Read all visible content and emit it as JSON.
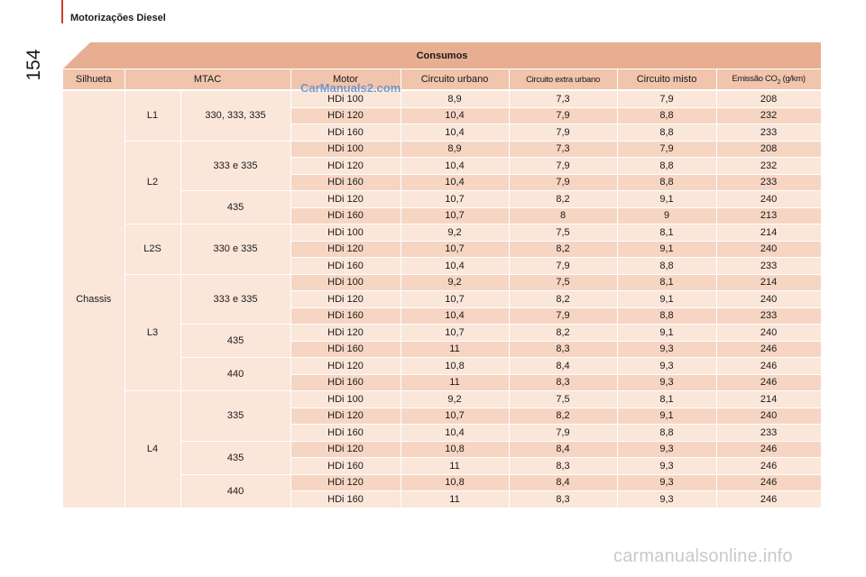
{
  "section_title": "Motorizações Diesel",
  "page_number": "154",
  "table_title": "Consumos",
  "headers": [
    "Silhueta",
    "MTAC",
    "Motor",
    "Circuito urbano",
    "Circuito extra urbano",
    "Circuito misto",
    "Emissão CO",
    "2",
    " (g/km)"
  ],
  "silhueta": "Chassis",
  "groups": [
    {
      "model": "L1",
      "rows": 3,
      "mtac": [
        {
          "label": "330, 333, 335",
          "rows": 3
        }
      ]
    },
    {
      "model": "L2",
      "rows": 5,
      "mtac": [
        {
          "label": "333 e 335",
          "rows": 3
        },
        {
          "label": "435",
          "rows": 2
        }
      ]
    },
    {
      "model": "L2S",
      "rows": 3,
      "mtac": [
        {
          "label": "330 e 335",
          "rows": 3
        }
      ]
    },
    {
      "model": "L3",
      "rows": 7,
      "mtac": [
        {
          "label": "333 e 335",
          "rows": 3
        },
        {
          "label": "435",
          "rows": 2
        },
        {
          "label": "440",
          "rows": 2
        }
      ]
    },
    {
      "model": "L4",
      "rows": 7,
      "mtac": [
        {
          "label": "335",
          "rows": 3
        },
        {
          "label": "435",
          "rows": 2
        },
        {
          "label": "440",
          "rows": 2
        }
      ]
    }
  ],
  "rows": [
    [
      "HDi 100",
      "8,9",
      "7,3",
      "7,9",
      "208"
    ],
    [
      "HDi 120",
      "10,4",
      "7,9",
      "8,8",
      "232"
    ],
    [
      "HDi 160",
      "10,4",
      "7,9",
      "8,8",
      "233"
    ],
    [
      "HDi 100",
      "8,9",
      "7,3",
      "7,9",
      "208"
    ],
    [
      "HDi 120",
      "10,4",
      "7,9",
      "8,8",
      "232"
    ],
    [
      "HDi 160",
      "10,4",
      "7,9",
      "8,8",
      "233"
    ],
    [
      "HDi 120",
      "10,7",
      "8,2",
      "9,1",
      "240"
    ],
    [
      "HDi 160",
      "10,7",
      "8",
      "9",
      "213"
    ],
    [
      "HDi 100",
      "9,2",
      "7,5",
      "8,1",
      "214"
    ],
    [
      "HDi 120",
      "10,7",
      "8,2",
      "9,1",
      "240"
    ],
    [
      "HDi 160",
      "10,4",
      "7,9",
      "8,8",
      "233"
    ],
    [
      "HDi 100",
      "9,2",
      "7,5",
      "8,1",
      "214"
    ],
    [
      "HDi 120",
      "10,7",
      "8,2",
      "9,1",
      "240"
    ],
    [
      "HDi 160",
      "10,4",
      "7,9",
      "8,8",
      "233"
    ],
    [
      "HDi 120",
      "10,7",
      "8,2",
      "9,1",
      "240"
    ],
    [
      "HDi 160",
      "11",
      "8,3",
      "9,3",
      "246"
    ],
    [
      "HDi 120",
      "10,8",
      "8,4",
      "9,3",
      "246"
    ],
    [
      "HDi 160",
      "11",
      "8,3",
      "9,3",
      "246"
    ],
    [
      "HDi 100",
      "9,2",
      "7,5",
      "8,1",
      "214"
    ],
    [
      "HDi 120",
      "10,7",
      "8,2",
      "9,1",
      "240"
    ],
    [
      "HDi 160",
      "10,4",
      "7,9",
      "8,8",
      "233"
    ],
    [
      "HDi 120",
      "10,8",
      "8,4",
      "9,3",
      "246"
    ],
    [
      "HDi 160",
      "11",
      "8,3",
      "9,3",
      "246"
    ],
    [
      "HDi 120",
      "10,8",
      "8,4",
      "9,3",
      "246"
    ],
    [
      "HDi 160",
      "11",
      "8,3",
      "9,3",
      "246"
    ]
  ],
  "watermark_top": "CarManuals2.com",
  "watermark_bottom": "carmanualsonline.info",
  "colors": {
    "accent": "#d23c2a",
    "banner": "#e8ae91",
    "header": "#f1c4ac",
    "row_dark": "#f6d5c3",
    "row_light": "#fbe6da"
  }
}
